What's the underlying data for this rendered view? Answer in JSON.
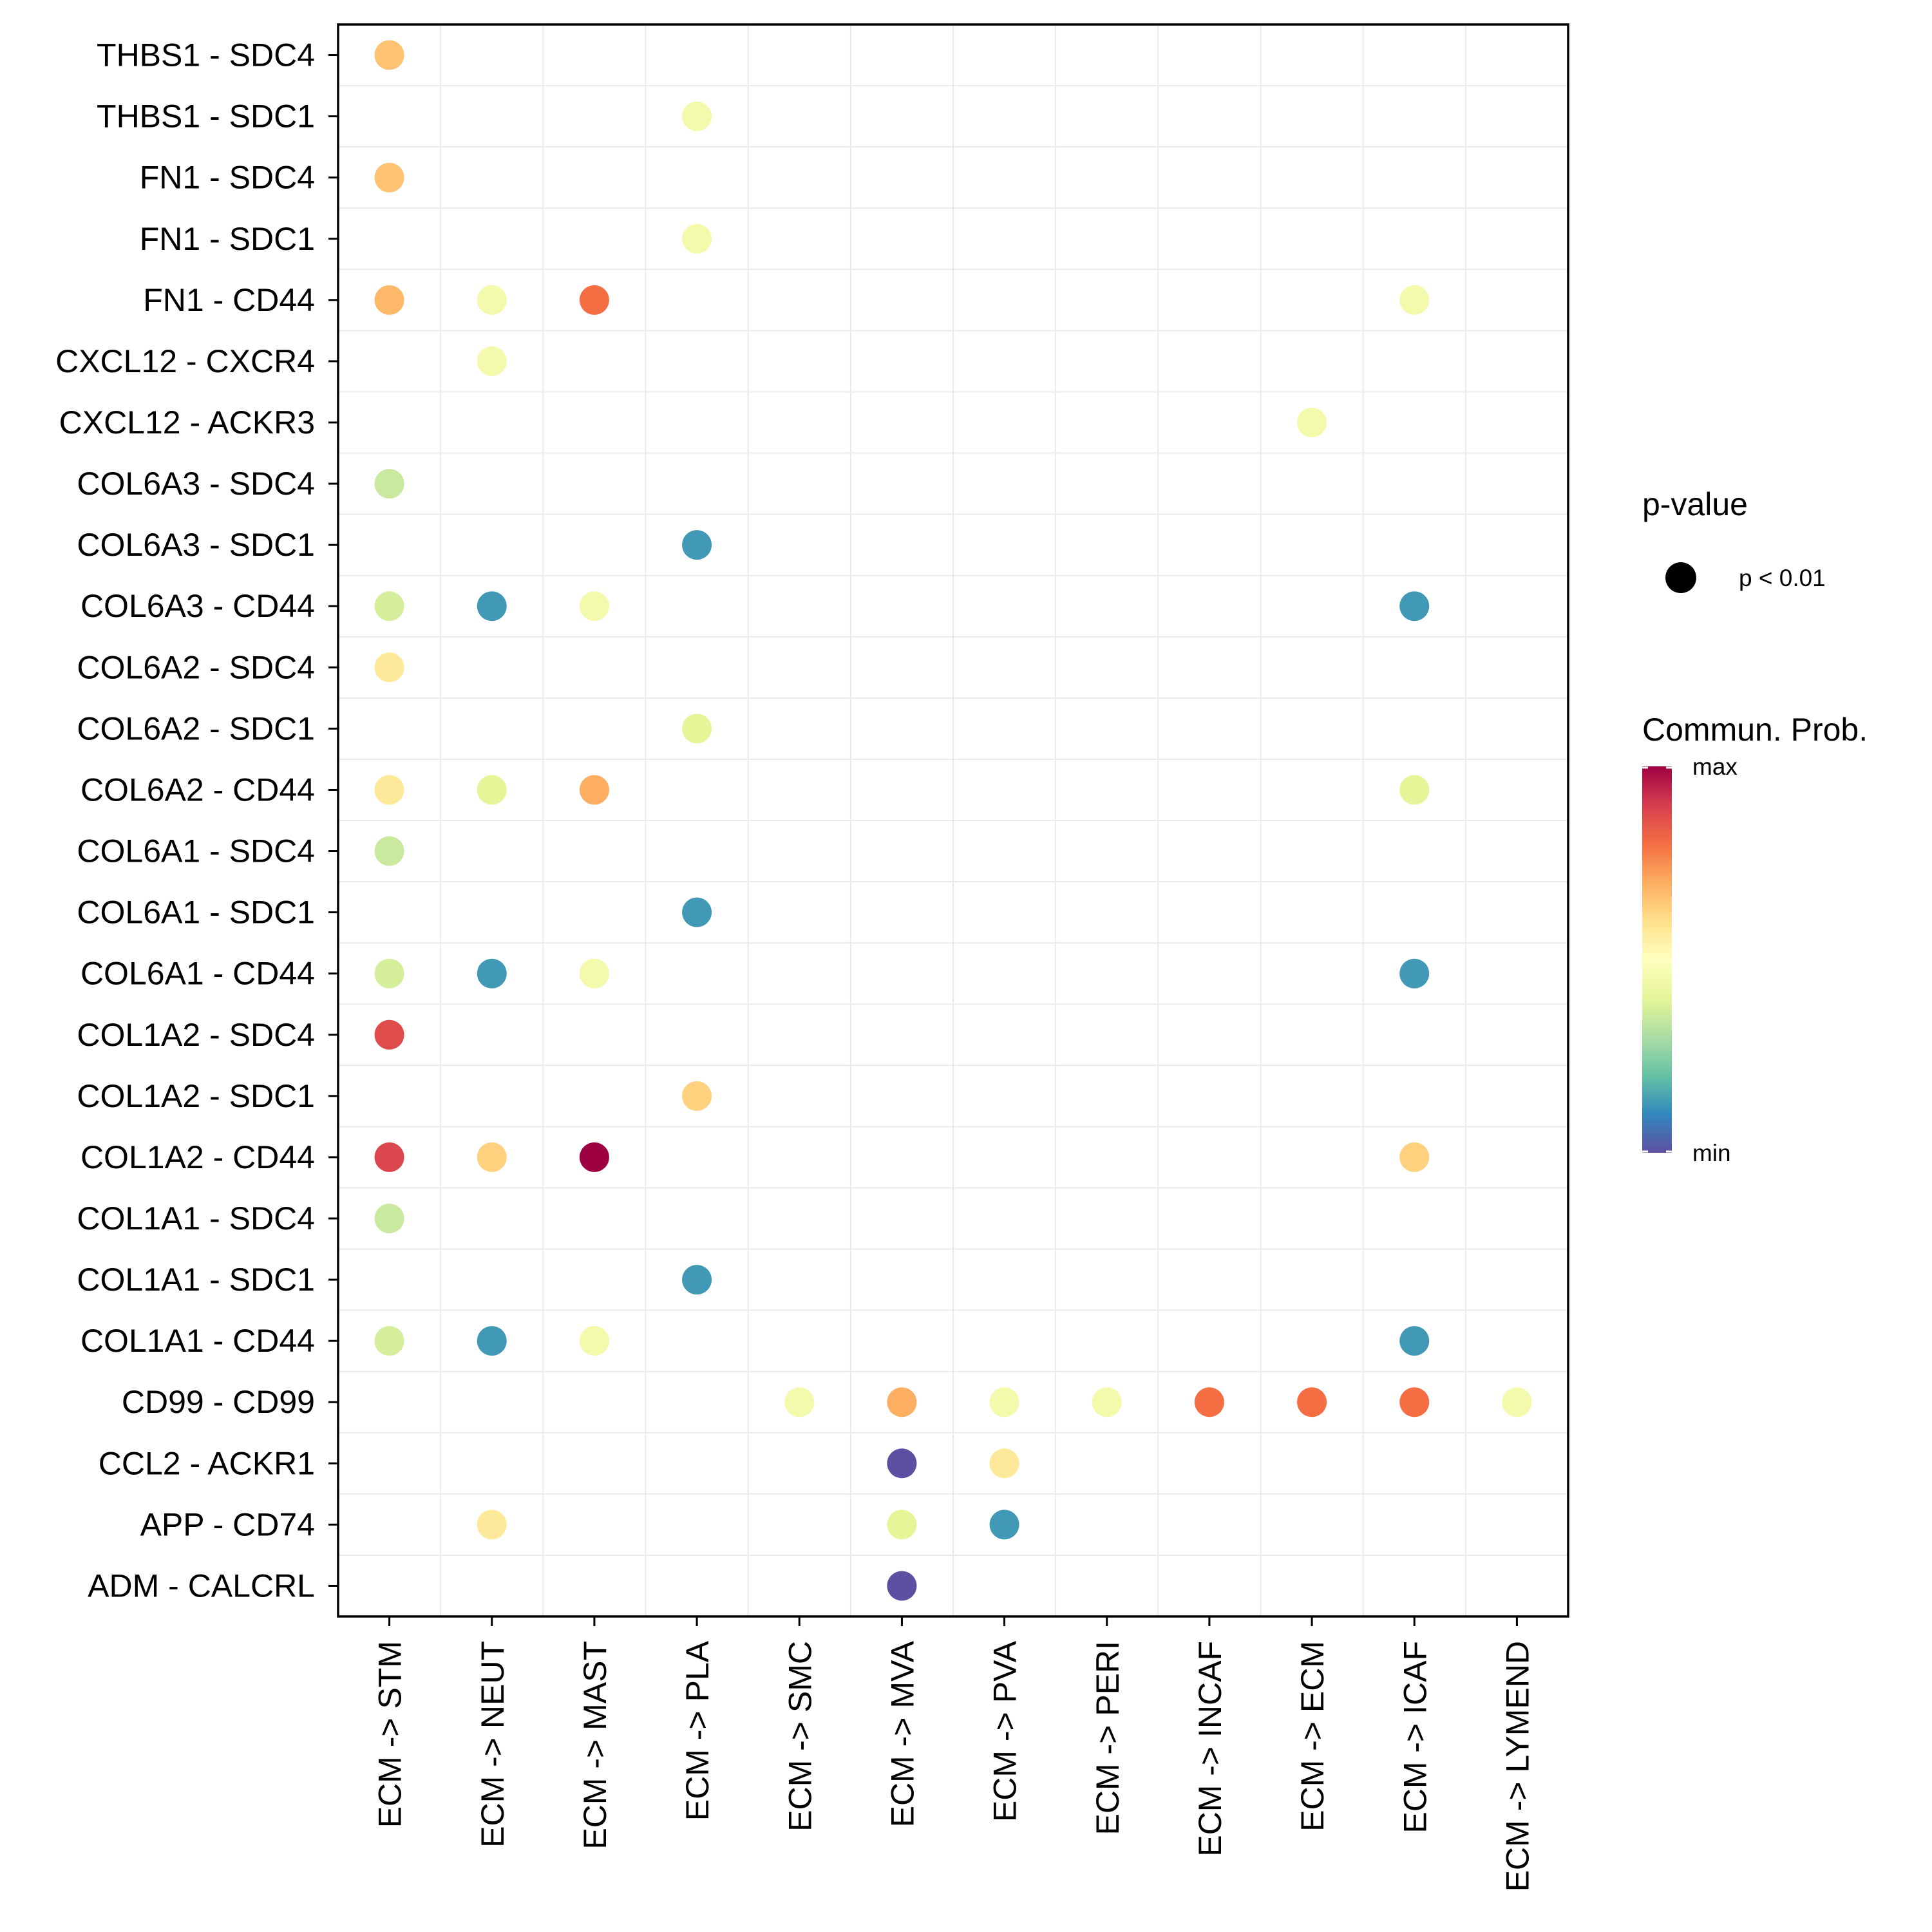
{
  "chart_data": {
    "type": "scatter",
    "subtype": "dot-matrix",
    "x_categories": [
      "ECM -> STM",
      "ECM -> NEUT",
      "ECM -> MAST",
      "ECM -> PLA",
      "ECM -> SMC",
      "ECM -> MVA",
      "ECM -> PVA",
      "ECM -> PERI",
      "ECM -> INCAF",
      "ECM -> ECM",
      "ECM -> ICAF",
      "ECM -> LYMEND"
    ],
    "y_categories": [
      "THBS1 - SDC4",
      "THBS1 - SDC1",
      "FN1 - SDC4",
      "FN1 - SDC1",
      "FN1 - CD44",
      "CXCL12 - CXCR4",
      "CXCL12 - ACKR3",
      "COL6A3 - SDC4",
      "COL6A3 - SDC1",
      "COL6A3 - CD44",
      "COL6A2 - SDC4",
      "COL6A2 - SDC1",
      "COL6A2 - CD44",
      "COL6A1 - SDC4",
      "COL6A1 - SDC1",
      "COL6A1 - CD44",
      "COL1A2 - SDC4",
      "COL1A2 - SDC1",
      "COL1A2 - CD44",
      "COL1A1 - SDC4",
      "COL1A1 - SDC1",
      "COL1A1 - CD44",
      "CD99 - CD99",
      "CCL2 - ACKR1",
      "APP - CD74",
      "ADM - CALCRL"
    ],
    "value_scale": "relative communication probability, 0 = min, 1 = max",
    "points": [
      {
        "x": "ECM -> STM",
        "y": "THBS1 - SDC4",
        "value": 0.66
      },
      {
        "x": "ECM -> PLA",
        "y": "THBS1 - SDC1",
        "value": 0.45
      },
      {
        "x": "ECM -> STM",
        "y": "FN1 - SDC4",
        "value": 0.66
      },
      {
        "x": "ECM -> PLA",
        "y": "FN1 - SDC1",
        "value": 0.45
      },
      {
        "x": "ECM -> STM",
        "y": "FN1 - CD44",
        "value": 0.68
      },
      {
        "x": "ECM -> NEUT",
        "y": "FN1 - CD44",
        "value": 0.45
      },
      {
        "x": "ECM -> MAST",
        "y": "FN1 - CD44",
        "value": 0.8
      },
      {
        "x": "ECM -> ICAF",
        "y": "FN1 - CD44",
        "value": 0.45
      },
      {
        "x": "ECM -> NEUT",
        "y": "CXCL12 - CXCR4",
        "value": 0.45
      },
      {
        "x": "ECM -> ECM",
        "y": "CXCL12 - ACKR3",
        "value": 0.45
      },
      {
        "x": "ECM -> STM",
        "y": "COL6A3 - SDC4",
        "value": 0.35
      },
      {
        "x": "ECM -> PLA",
        "y": "COL6A3 - SDC1",
        "value": 0.13
      },
      {
        "x": "ECM -> STM",
        "y": "COL6A3 - CD44",
        "value": 0.37
      },
      {
        "x": "ECM -> NEUT",
        "y": "COL6A3 - CD44",
        "value": 0.13
      },
      {
        "x": "ECM -> MAST",
        "y": "COL6A3 - CD44",
        "value": 0.45
      },
      {
        "x": "ECM -> ICAF",
        "y": "COL6A3 - CD44",
        "value": 0.13
      },
      {
        "x": "ECM -> STM",
        "y": "COL6A2 - SDC4",
        "value": 0.57
      },
      {
        "x": "ECM -> PLA",
        "y": "COL6A2 - SDC1",
        "value": 0.4
      },
      {
        "x": "ECM -> STM",
        "y": "COL6A2 - CD44",
        "value": 0.57
      },
      {
        "x": "ECM -> NEUT",
        "y": "COL6A2 - CD44",
        "value": 0.4
      },
      {
        "x": "ECM -> MAST",
        "y": "COL6A2 - CD44",
        "value": 0.7
      },
      {
        "x": "ECM -> ICAF",
        "y": "COL6A2 - CD44",
        "value": 0.4
      },
      {
        "x": "ECM -> STM",
        "y": "COL6A1 - SDC4",
        "value": 0.35
      },
      {
        "x": "ECM -> PLA",
        "y": "COL6A1 - SDC1",
        "value": 0.13
      },
      {
        "x": "ECM -> STM",
        "y": "COL6A1 - CD44",
        "value": 0.37
      },
      {
        "x": "ECM -> NEUT",
        "y": "COL6A1 - CD44",
        "value": 0.13
      },
      {
        "x": "ECM -> MAST",
        "y": "COL6A1 - CD44",
        "value": 0.45
      },
      {
        "x": "ECM -> ICAF",
        "y": "COL6A1 - CD44",
        "value": 0.13
      },
      {
        "x": "ECM -> STM",
        "y": "COL1A2 - SDC4",
        "value": 0.87
      },
      {
        "x": "ECM -> PLA",
        "y": "COL1A2 - SDC1",
        "value": 0.63
      },
      {
        "x": "ECM -> STM",
        "y": "COL1A2 - CD44",
        "value": 0.88
      },
      {
        "x": "ECM -> NEUT",
        "y": "COL1A2 - CD44",
        "value": 0.63
      },
      {
        "x": "ECM -> MAST",
        "y": "COL1A2 - CD44",
        "value": 1.0
      },
      {
        "x": "ECM -> ICAF",
        "y": "COL1A2 - CD44",
        "value": 0.63
      },
      {
        "x": "ECM -> STM",
        "y": "COL1A1 - SDC4",
        "value": 0.35
      },
      {
        "x": "ECM -> PLA",
        "y": "COL1A1 - SDC1",
        "value": 0.13
      },
      {
        "x": "ECM -> STM",
        "y": "COL1A1 - CD44",
        "value": 0.37
      },
      {
        "x": "ECM -> NEUT",
        "y": "COL1A1 - CD44",
        "value": 0.13
      },
      {
        "x": "ECM -> MAST",
        "y": "COL1A1 - CD44",
        "value": 0.45
      },
      {
        "x": "ECM -> ICAF",
        "y": "COL1A1 - CD44",
        "value": 0.13
      },
      {
        "x": "ECM -> SMC",
        "y": "CD99 - CD99",
        "value": 0.45
      },
      {
        "x": "ECM -> MVA",
        "y": "CD99 - CD99",
        "value": 0.7
      },
      {
        "x": "ECM -> PVA",
        "y": "CD99 - CD99",
        "value": 0.45
      },
      {
        "x": "ECM -> PERI",
        "y": "CD99 - CD99",
        "value": 0.45
      },
      {
        "x": "ECM -> INCAF",
        "y": "CD99 - CD99",
        "value": 0.8
      },
      {
        "x": "ECM -> ECM",
        "y": "CD99 - CD99",
        "value": 0.8
      },
      {
        "x": "ECM -> ICAF",
        "y": "CD99 - CD99",
        "value": 0.8
      },
      {
        "x": "ECM -> LYMEND",
        "y": "CD99 - CD99",
        "value": 0.45
      },
      {
        "x": "ECM -> MVA",
        "y": "CCL2 - ACKR1",
        "value": 0.0
      },
      {
        "x": "ECM -> PVA",
        "y": "CCL2 - ACKR1",
        "value": 0.57
      },
      {
        "x": "ECM -> NEUT",
        "y": "APP - CD74",
        "value": 0.57
      },
      {
        "x": "ECM -> MVA",
        "y": "APP - CD74",
        "value": 0.4
      },
      {
        "x": "ECM -> PVA",
        "y": "APP - CD74",
        "value": 0.13
      },
      {
        "x": "ECM -> MVA",
        "y": "ADM - CALCRL",
        "value": 0.0
      }
    ],
    "color_scale": [
      "#5E4FA2",
      "#3288BD",
      "#66C2A5",
      "#ABDDA4",
      "#E6F598",
      "#FFFFBF",
      "#FEE08B",
      "#FDAE61",
      "#F46D43",
      "#D53E4F",
      "#9E0142"
    ],
    "legend": {
      "size_title": "p-value",
      "size_label": "p < 0.01",
      "color_title": "Commun. Prob.",
      "color_max_label": "max",
      "color_min_label": "min",
      "placement": "right"
    },
    "grid": true
  }
}
